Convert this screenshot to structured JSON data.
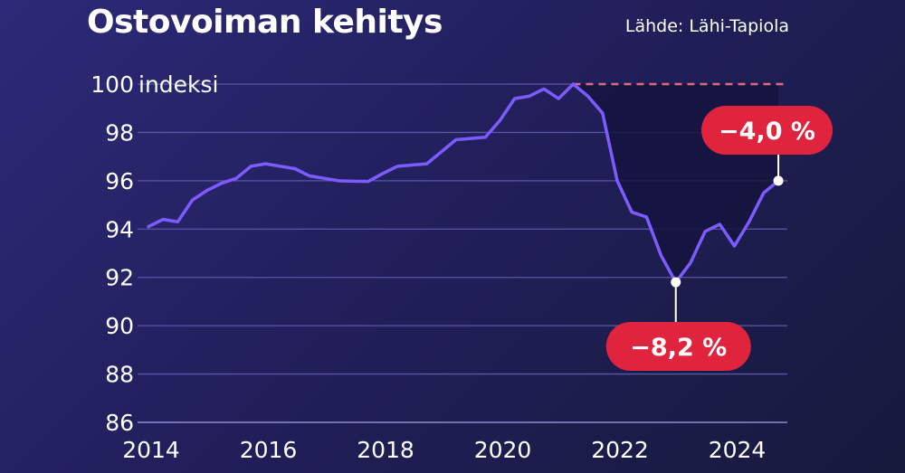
{
  "header": {
    "title": "Ostovoiman kehitys",
    "source": "Lähde: Lähi-Tapiola"
  },
  "colors": {
    "line": "#7d5cff",
    "grid": "#5a57a8",
    "reference_line": "#e06b78",
    "callout": "#e0243e",
    "shaded_area": "#15143e",
    "marker": "#ffffff"
  },
  "chart_data": {
    "type": "line",
    "title": "Ostovoiman kehitys",
    "ylabel": "indeksi",
    "xlabel": "",
    "ylim": [
      86,
      100
    ],
    "xlim": [
      2014,
      2025
    ],
    "y_ticks": [
      86,
      88,
      90,
      92,
      94,
      96,
      98,
      100
    ],
    "y_tick_labels": [
      "86",
      "88",
      "90",
      "92",
      "94",
      "96",
      "98",
      "100"
    ],
    "x_ticks": [
      2014,
      2016,
      2018,
      2020,
      2022,
      2024
    ],
    "x_tick_labels": [
      "2014",
      "2016",
      "2018",
      "2020",
      "2022",
      "2024"
    ],
    "grid": true,
    "reference_value": 100,
    "series": [
      {
        "x": [
          2014.0,
          2014.25,
          2014.5,
          2014.75,
          2015.0,
          2015.25,
          2015.5,
          2015.75,
          2016.0,
          2016.25,
          2016.5,
          2016.75,
          2017.0,
          2017.25,
          2017.5,
          2017.75,
          2018.0,
          2018.25,
          2018.5,
          2018.75,
          2019.0,
          2019.25,
          2019.5,
          2019.75,
          2020.0,
          2020.25,
          2020.5,
          2020.75,
          2021.0,
          2021.25,
          2021.5,
          2021.75,
          2022.0,
          2022.25,
          2022.5,
          2022.75,
          2023.0,
          2023.25,
          2023.5,
          2023.75,
          2024.0,
          2024.25,
          2024.5,
          2024.75
        ],
        "values": [
          94.1,
          94.4,
          94.3,
          95.2,
          95.6,
          95.9,
          96.1,
          96.6,
          96.7,
          96.6,
          96.5,
          96.2,
          96.1,
          96.0,
          95.98,
          95.97,
          96.3,
          96.6,
          96.65,
          96.7,
          97.2,
          97.7,
          97.75,
          97.8,
          98.5,
          99.4,
          99.5,
          99.8,
          99.4,
          100.0,
          99.5,
          98.8,
          96.0,
          94.7,
          94.5,
          92.9,
          91.8,
          92.6,
          93.9,
          94.2,
          93.3,
          94.3,
          95.5,
          96.0
        ]
      }
    ],
    "annotations": [
      {
        "label": "−8,2 %",
        "x": 2023.0,
        "y": 91.8
      },
      {
        "label": "−4,0 %",
        "x": 2024.75,
        "y": 96.0
      }
    ]
  }
}
